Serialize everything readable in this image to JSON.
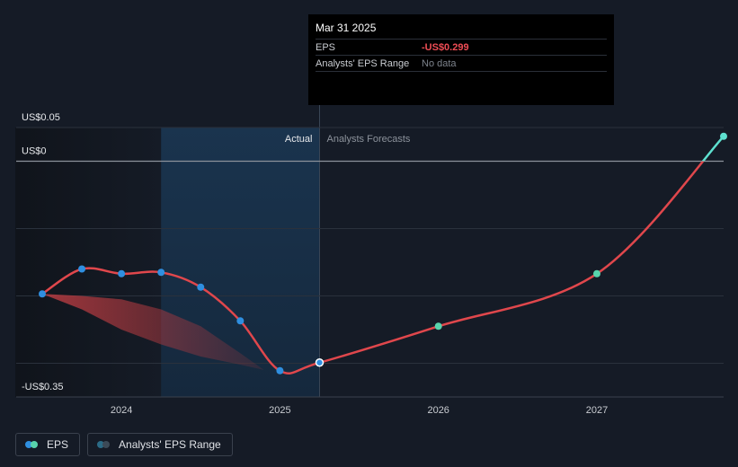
{
  "chart_data": {
    "type": "line",
    "title": "",
    "xlabel": "",
    "ylabel": "",
    "xlim": [
      2023.5,
      2027.8
    ],
    "ylim": [
      -0.35,
      0.05
    ],
    "y_labels": [
      {
        "value": 0.05,
        "label": "US$0.05"
      },
      {
        "value": 0,
        "label": "US$0"
      },
      {
        "value": -0.35,
        "label": "-US$0.35"
      }
    ],
    "x_ticks": [
      {
        "value": 2024,
        "label": "2024"
      },
      {
        "value": 2025,
        "label": "2025"
      },
      {
        "value": 2026,
        "label": "2026"
      },
      {
        "value": 2027,
        "label": "2027"
      }
    ],
    "gridlines_y": [
      0,
      -0.1,
      -0.2,
      -0.3
    ],
    "sections": {
      "actual_label": "Actual",
      "forecast_label": "Analysts Forecasts",
      "shade_start": 2024.25,
      "divider": 2025.25
    },
    "series": [
      {
        "name": "EPS",
        "color": "#e0474c",
        "points": [
          {
            "x": 2023.5,
            "y": -0.197,
            "kind": "actual"
          },
          {
            "x": 2023.75,
            "y": -0.16,
            "kind": "actual"
          },
          {
            "x": 2024.0,
            "y": -0.167,
            "kind": "actual"
          },
          {
            "x": 2024.25,
            "y": -0.165,
            "kind": "actual"
          },
          {
            "x": 2024.5,
            "y": -0.187,
            "kind": "actual"
          },
          {
            "x": 2024.75,
            "y": -0.237,
            "kind": "actual"
          },
          {
            "x": 2025.0,
            "y": -0.311,
            "kind": "actual"
          },
          {
            "x": 2025.25,
            "y": -0.299,
            "kind": "current"
          },
          {
            "x": 2026.0,
            "y": -0.245,
            "kind": "forecast"
          },
          {
            "x": 2027.0,
            "y": -0.167,
            "kind": "forecast"
          },
          {
            "x": 2027.8,
            "y": 0.037,
            "kind": "forecast"
          }
        ]
      }
    ],
    "range_band": {
      "upper": [
        [
          2023.5,
          -0.197
        ],
        [
          2023.75,
          -0.2
        ],
        [
          2024.0,
          -0.205
        ],
        [
          2024.25,
          -0.22
        ],
        [
          2024.5,
          -0.245
        ],
        [
          2024.75,
          -0.285
        ],
        [
          2024.9,
          -0.31
        ]
      ],
      "lower": [
        [
          2023.5,
          -0.197
        ],
        [
          2023.75,
          -0.22
        ],
        [
          2024.0,
          -0.25
        ],
        [
          2024.25,
          -0.272
        ],
        [
          2024.5,
          -0.29
        ],
        [
          2024.75,
          -0.302
        ],
        [
          2024.9,
          -0.31
        ]
      ]
    },
    "colors": {
      "line": "#e0474c",
      "actual_dot": "#2f8fe0",
      "forecast_dot": "#58d3ac",
      "above_zero_line": "#5ee1d0",
      "range_fill": "#b03a40",
      "forecast_band": "#1a3550"
    },
    "legend_position": "bottom-left"
  },
  "tooltip": {
    "date": "Mar 31 2025",
    "eps_label": "EPS",
    "eps_value": "-US$0.299",
    "range_label": "Analysts' EPS Range",
    "range_value": "No data"
  },
  "legend": {
    "eps_label": "EPS",
    "range_label": "Analysts' EPS Range"
  }
}
